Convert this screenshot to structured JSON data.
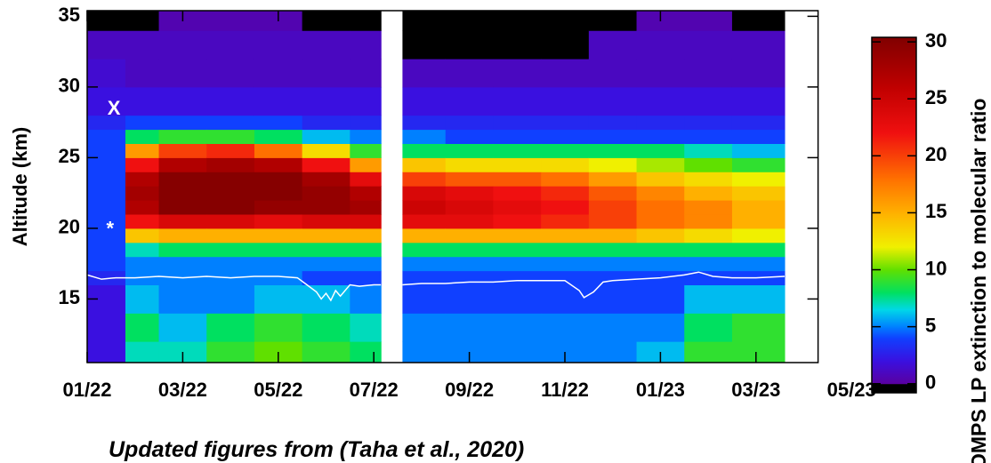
{
  "chart_data": {
    "type": "heatmap",
    "ylabel": "Altitude (km)",
    "colorbar_label": "OMPS LP extinction to molecular ratio",
    "xlim": [
      0,
      15.3
    ],
    "ylim": [
      10.5,
      35.4
    ],
    "xticks": [
      {
        "value": 0,
        "label": "01/22"
      },
      {
        "value": 2,
        "label": "03/22"
      },
      {
        "value": 4,
        "label": "05/22"
      },
      {
        "value": 6,
        "label": "07/22"
      },
      {
        "value": 8,
        "label": "09/22"
      },
      {
        "value": 10,
        "label": "11/22"
      },
      {
        "value": 12,
        "label": "01/23"
      },
      {
        "value": 14,
        "label": "03/23"
      },
      {
        "value": 16,
        "label": "05/23"
      }
    ],
    "yticks": [
      15,
      20,
      25,
      30,
      35
    ],
    "clim": [
      -0.8,
      30.4
    ],
    "cticks": [
      0,
      5,
      10,
      15,
      20,
      25,
      30
    ],
    "colormap": [
      {
        "value": -0.8,
        "color": "#000000"
      },
      {
        "value": 0,
        "color": "#5a00a0"
      },
      {
        "value": 2,
        "color": "#3a10e0"
      },
      {
        "value": 4,
        "color": "#1040ff"
      },
      {
        "value": 5,
        "color": "#0080ff"
      },
      {
        "value": 6.5,
        "color": "#00d8e8"
      },
      {
        "value": 8,
        "color": "#00e060"
      },
      {
        "value": 10,
        "color": "#60e000"
      },
      {
        "value": 12,
        "color": "#f0f000"
      },
      {
        "value": 15,
        "color": "#ffb000"
      },
      {
        "value": 18,
        "color": "#ff7000"
      },
      {
        "value": 22,
        "color": "#f01010"
      },
      {
        "value": 26,
        "color": "#c00000"
      },
      {
        "value": 30.4,
        "color": "#800000"
      }
    ],
    "x_edges": [
      0,
      0.8,
      1.5,
      2.5,
      3.5,
      4.5,
      5.5,
      6.15,
      6.6,
      7.5,
      8.5,
      9.5,
      10.5,
      11.5,
      12.5,
      13.5,
      14.6
    ],
    "y_edges": [
      10.5,
      12,
      14,
      16,
      17,
      18,
      19,
      20,
      21,
      22,
      23,
      24,
      25,
      26,
      27,
      28,
      30,
      32,
      34,
      35.4
    ],
    "values": [
      [
        2,
        2,
        2,
        3,
        4,
        4,
        4,
        4,
        4,
        4,
        4,
        4,
        4,
        4,
        3,
        2,
        1.5,
        1,
        -0.5
      ],
      [
        7,
        8,
        6,
        5,
        5,
        7,
        14,
        22,
        27,
        28,
        27,
        22,
        16,
        8,
        4,
        2,
        1,
        1,
        -0.5
      ],
      [
        7,
        6,
        5,
        5,
        5,
        8,
        15,
        24,
        30,
        30,
        30,
        27,
        20,
        9,
        4,
        2,
        1,
        1,
        0.5
      ],
      [
        9,
        8,
        5,
        5,
        5,
        8,
        15,
        24,
        30,
        30,
        30,
        28,
        21,
        9,
        4,
        2,
        1,
        1,
        0.5
      ],
      [
        10,
        9,
        6,
        5,
        5,
        8,
        15,
        23,
        29,
        30,
        30,
        27,
        18,
        8,
        4,
        2,
        1,
        1,
        0.5
      ],
      [
        9,
        8,
        6,
        4,
        5,
        8,
        15,
        24,
        29,
        29,
        28,
        22,
        13,
        6,
        3,
        2,
        1,
        1,
        -0.5
      ],
      [
        8,
        7,
        5,
        4,
        5,
        8,
        15,
        24,
        28,
        27,
        23,
        16,
        9,
        5,
        3,
        2,
        1,
        1,
        -0.5
      ],
      [
        null,
        null,
        null,
        null,
        null,
        null,
        null,
        null,
        null,
        null,
        null,
        null,
        null,
        null,
        null,
        null,
        null,
        null,
        null
      ],
      [
        5,
        5,
        4,
        4,
        5,
        8,
        15,
        23,
        25,
        24,
        20,
        14,
        8,
        5,
        3,
        2,
        1,
        -0.5,
        -0.5
      ],
      [
        5,
        5,
        4,
        4,
        5,
        8,
        15,
        23,
        24,
        23,
        19,
        13,
        8,
        4,
        3,
        2,
        1,
        -0.5,
        -0.5
      ],
      [
        5,
        5,
        4,
        4,
        5,
        8,
        15,
        22,
        23,
        22,
        19,
        13,
        8,
        4,
        3,
        2,
        1,
        -0.5,
        -0.5
      ],
      [
        5,
        5,
        4,
        4,
        5,
        8,
        15,
        21,
        22,
        21,
        18,
        13,
        8,
        4,
        3,
        2,
        1,
        -0.5,
        -0.5
      ],
      [
        5,
        5,
        4,
        4,
        5,
        8,
        15,
        20,
        20,
        19,
        16,
        12,
        8,
        4,
        3,
        2,
        1,
        1,
        -0.5
      ],
      [
        6,
        5,
        4,
        4,
        5,
        8,
        14,
        18,
        18,
        17,
        14,
        11,
        8,
        4,
        3,
        2,
        1,
        1,
        0.5
      ],
      [
        9,
        8,
        6,
        4,
        5,
        8,
        13,
        17,
        17,
        15,
        13,
        10,
        7,
        4,
        3,
        2,
        1,
        1,
        0.5
      ],
      [
        9,
        9,
        6,
        4,
        5,
        8,
        12,
        15,
        15,
        14,
        12,
        9,
        6,
        4,
        3,
        2,
        1,
        1,
        -0.5
      ]
    ],
    "lines": [
      {
        "color": "#ffffff",
        "x": [
          0,
          0.3,
          0.6,
          1,
          1.5,
          2,
          2.5,
          3,
          3.5,
          4,
          4.4,
          4.6,
          4.8,
          4.9,
          5.0,
          5.1,
          5.2,
          5.3,
          5.5,
          5.7,
          6.0,
          6.15,
          6.3,
          6.6,
          7,
          7.5,
          8,
          8.5,
          9,
          9.5,
          10,
          10.3,
          10.4,
          10.6,
          10.8,
          11,
          11.5,
          12,
          12.5,
          12.8,
          13.1,
          13.5,
          14,
          14.6
        ],
        "values": [
          16.7,
          16.4,
          16.5,
          16.5,
          16.6,
          16.5,
          16.6,
          16.5,
          16.6,
          16.6,
          16.5,
          16.0,
          15.5,
          15.0,
          15.4,
          14.9,
          15.6,
          15.2,
          16.0,
          15.9,
          16.0,
          16.0,
          null,
          16.0,
          16.1,
          16.1,
          16.2,
          16.2,
          16.3,
          16.3,
          16.3,
          15.6,
          15.1,
          15.5,
          16.2,
          16.3,
          16.4,
          16.5,
          16.7,
          16.9,
          16.6,
          16.5,
          16.5,
          16.6
        ]
      }
    ],
    "annotations": [
      {
        "text": "X",
        "x": 0.56,
        "y": 28.4
      },
      {
        "text": "*",
        "x": 0.48,
        "y": 19.9
      }
    ]
  },
  "caption": "Updated figures from (Taha et al., 2020)"
}
